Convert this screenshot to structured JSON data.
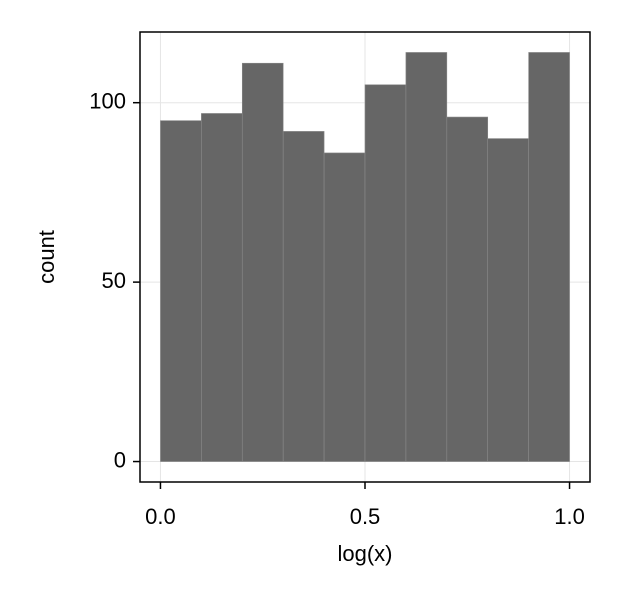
{
  "chart_data": {
    "type": "histogram",
    "x_label": "log(x)",
    "y_label": "count",
    "bins": [
      0.0,
      0.1,
      0.2,
      0.3,
      0.4,
      0.5,
      0.6,
      0.7,
      0.8,
      0.9,
      1.0
    ],
    "values": [
      95,
      97,
      111,
      92,
      86,
      105,
      114,
      96,
      90,
      114
    ],
    "color": "#666666",
    "xlim": [
      -0.05,
      1.05
    ],
    "xticks": [
      {
        "value": 0,
        "label": "0.0"
      },
      {
        "value": 0.5,
        "label": "0.5"
      },
      {
        "value": 1,
        "label": "1.0"
      }
    ],
    "ylim": [
      -5.7,
      119.7
    ],
    "yticks": [
      0,
      50,
      100
    ],
    "grid": true
  }
}
